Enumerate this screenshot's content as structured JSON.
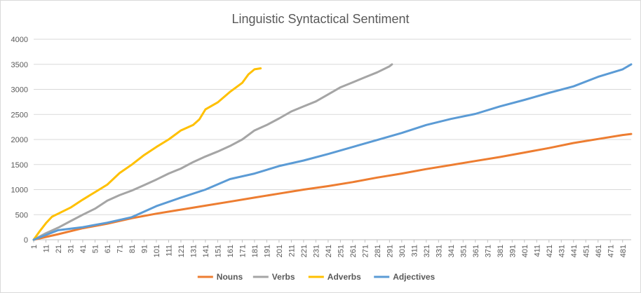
{
  "chart_data": {
    "type": "line",
    "title": "Linguistic Syntactical Sentiment",
    "xlabel": "",
    "ylabel": "",
    "x_range": [
      1,
      488
    ],
    "ylim": [
      0,
      4000
    ],
    "y_ticks": [
      0,
      500,
      1000,
      1500,
      2000,
      2500,
      3000,
      3500,
      4000
    ],
    "x_tick_labels": [
      1,
      11,
      21,
      31,
      41,
      51,
      61,
      71,
      81,
      91,
      101,
      111,
      121,
      131,
      141,
      151,
      161,
      171,
      181,
      191,
      201,
      211,
      221,
      231,
      241,
      251,
      261,
      271,
      281,
      291,
      301,
      311,
      321,
      331,
      341,
      351,
      361,
      371,
      381,
      391,
      401,
      411,
      421,
      431,
      441,
      451,
      461,
      471,
      481
    ],
    "grid": "horizontal",
    "legend_position": "bottom",
    "series": [
      {
        "name": "Nouns",
        "color": "#ED7D31",
        "x": [
          1,
          21,
          41,
          61,
          81,
          101,
          121,
          141,
          161,
          181,
          201,
          221,
          241,
          261,
          281,
          301,
          321,
          341,
          361,
          381,
          401,
          421,
          441,
          461,
          481,
          488
        ],
        "y": [
          0,
          110,
          230,
          320,
          430,
          520,
          600,
          680,
          760,
          840,
          920,
          1000,
          1070,
          1150,
          1240,
          1320,
          1410,
          1490,
          1570,
          1650,
          1740,
          1830,
          1930,
          2010,
          2090,
          2110
        ]
      },
      {
        "name": "Verbs",
        "color": "#A5A5A5",
        "x": [
          1,
          11,
          21,
          31,
          41,
          51,
          61,
          71,
          81,
          91,
          101,
          111,
          121,
          131,
          141,
          151,
          161,
          171,
          181,
          191,
          201,
          211,
          221,
          231,
          241,
          251,
          261,
          271,
          281,
          291,
          293
        ],
        "y": [
          0,
          130,
          240,
          370,
          500,
          620,
          780,
          890,
          980,
          1090,
          1200,
          1320,
          1420,
          1550,
          1660,
          1760,
          1870,
          2000,
          2180,
          2290,
          2420,
          2560,
          2660,
          2760,
          2900,
          3040,
          3140,
          3240,
          3340,
          3460,
          3500
        ]
      },
      {
        "name": "Adverbs",
        "color": "#FFC000",
        "x": [
          1,
          6,
          11,
          16,
          21,
          31,
          41,
          51,
          61,
          71,
          81,
          91,
          101,
          111,
          121,
          131,
          136,
          141,
          151,
          161,
          171,
          176,
          181,
          186
        ],
        "y": [
          0,
          170,
          330,
          460,
          520,
          640,
          800,
          950,
          1100,
          1330,
          1500,
          1690,
          1850,
          2000,
          2180,
          2290,
          2400,
          2600,
          2740,
          2950,
          3130,
          3300,
          3400,
          3420
        ]
      },
      {
        "name": "Adjectives",
        "color": "#5B9BD5",
        "x": [
          1,
          21,
          41,
          61,
          81,
          101,
          121,
          141,
          161,
          181,
          201,
          221,
          241,
          261,
          281,
          301,
          321,
          341,
          361,
          381,
          401,
          421,
          441,
          461,
          481,
          488
        ],
        "y": [
          0,
          190,
          250,
          340,
          450,
          670,
          840,
          1000,
          1210,
          1320,
          1470,
          1580,
          1710,
          1850,
          1990,
          2130,
          2290,
          2410,
          2510,
          2660,
          2790,
          2930,
          3060,
          3250,
          3400,
          3500
        ]
      }
    ]
  }
}
